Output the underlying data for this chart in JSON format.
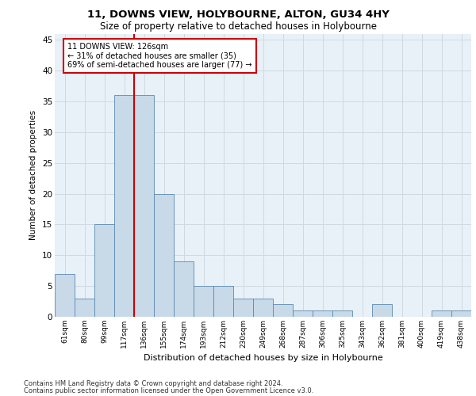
{
  "title1": "11, DOWNS VIEW, HOLYBOURNE, ALTON, GU34 4HY",
  "title2": "Size of property relative to detached houses in Holybourne",
  "xlabel": "Distribution of detached houses by size in Holybourne",
  "ylabel": "Number of detached properties",
  "categories": [
    "61sqm",
    "80sqm",
    "99sqm",
    "117sqm",
    "136sqm",
    "155sqm",
    "174sqm",
    "193sqm",
    "212sqm",
    "230sqm",
    "249sqm",
    "268sqm",
    "287sqm",
    "306sqm",
    "325sqm",
    "343sqm",
    "362sqm",
    "381sqm",
    "400sqm",
    "419sqm",
    "438sqm"
  ],
  "values": [
    7,
    3,
    15,
    36,
    36,
    20,
    9,
    5,
    5,
    3,
    3,
    2,
    1,
    1,
    1,
    0,
    2,
    0,
    0,
    1,
    1
  ],
  "bar_color": "#c8d9e8",
  "bar_edge_color": "#5a8ab0",
  "property_line_x": 3.5,
  "annotation_line1": "11 DOWNS VIEW: 126sqm",
  "annotation_line2": "← 31% of detached houses are smaller (35)",
  "annotation_line3": "69% of semi-detached houses are larger (77) →",
  "annotation_box_color": "#ffffff",
  "annotation_box_edge_color": "#cc0000",
  "property_line_color": "#cc0000",
  "ylim": [
    0,
    46
  ],
  "yticks": [
    0,
    5,
    10,
    15,
    20,
    25,
    30,
    35,
    40,
    45
  ],
  "grid_color": "#d0d8e0",
  "bg_color": "#e8f0f8",
  "footer1": "Contains HM Land Registry data © Crown copyright and database right 2024.",
  "footer2": "Contains public sector information licensed under the Open Government Licence v3.0."
}
